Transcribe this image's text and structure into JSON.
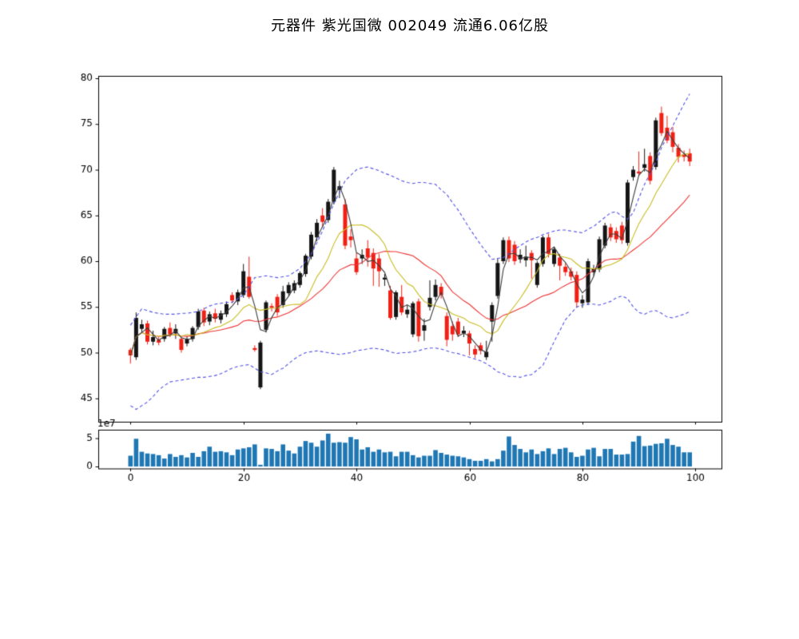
{
  "title": "元器件 紫光国微 002049 流通6.06亿股",
  "chart_data": {
    "type": "candlestick",
    "title": "元器件 紫光国微 002049 流通6.06亿股",
    "x_description": "trading session index 0-99",
    "ohlc": [
      [
        50.3,
        50.5,
        48.8,
        49.7
      ],
      [
        49.5,
        54.4,
        49.2,
        53.8
      ],
      [
        52.6,
        53.6,
        52.2,
        53.1
      ],
      [
        53.2,
        53.5,
        50.9,
        51.2
      ],
      [
        51.2,
        52.4,
        50.8,
        51.7
      ],
      [
        51.4,
        51.7,
        50.8,
        51.1
      ],
      [
        51.5,
        52.8,
        51.2,
        52.6
      ],
      [
        52.7,
        53.3,
        51.7,
        52.0
      ],
      [
        52.1,
        53.1,
        51.5,
        52.6
      ],
      [
        51.5,
        51.8,
        50.0,
        50.3
      ],
      [
        51.0,
        51.8,
        50.7,
        51.5
      ],
      [
        51.5,
        52.9,
        51.2,
        52.7
      ],
      [
        52.8,
        54.8,
        52.5,
        54.5
      ],
      [
        54.6,
        54.9,
        52.9,
        53.3
      ],
      [
        53.4,
        54.5,
        53.0,
        54.2
      ],
      [
        54.3,
        54.8,
        53.3,
        53.7
      ],
      [
        53.6,
        54.6,
        53.2,
        54.3
      ],
      [
        54.2,
        55.6,
        53.9,
        55.3
      ],
      [
        56.3,
        56.6,
        55.4,
        55.7
      ],
      [
        55.6,
        56.9,
        55.2,
        56.6
      ],
      [
        56.3,
        59.7,
        56.0,
        58.9
      ],
      [
        58.3,
        60.5,
        55.9,
        56.1
      ],
      [
        50.5,
        50.8,
        50.1,
        50.3
      ],
      [
        46.2,
        51.3,
        46.0,
        51.1
      ],
      [
        52.5,
        55.7,
        52.2,
        55.5
      ],
      [
        55.1,
        55.4,
        54.5,
        54.9
      ],
      [
        56.1,
        56.4,
        54.0,
        54.4
      ],
      [
        55.2,
        57.3,
        54.9,
        56.7
      ],
      [
        56.5,
        57.7,
        56.2,
        57.4
      ],
      [
        56.8,
        57.9,
        56.5,
        57.6
      ],
      [
        57.4,
        58.9,
        57.1,
        58.7
      ],
      [
        58.6,
        60.8,
        58.3,
        60.6
      ],
      [
        60.5,
        63.2,
        60.2,
        62.9
      ],
      [
        62.6,
        64.6,
        62.2,
        64.2
      ],
      [
        65.0,
        65.8,
        63.7,
        64.3
      ],
      [
        64.5,
        66.8,
        64.2,
        66.5
      ],
      [
        66.5,
        70.3,
        66.2,
        70.0
      ],
      [
        67.8,
        68.8,
        66.9,
        68.2
      ],
      [
        66.2,
        66.8,
        61.3,
        61.7
      ],
      [
        62.7,
        63.5,
        61.5,
        62.3
      ],
      [
        60.3,
        60.9,
        58.5,
        58.8
      ],
      [
        60.3,
        61.3,
        59.7,
        60.7
      ],
      [
        61.4,
        62.3,
        59.4,
        60.4
      ],
      [
        60.9,
        61.4,
        57.3,
        59.2
      ],
      [
        60.3,
        60.8,
        57.2,
        58.9
      ],
      [
        58.0,
        58.6,
        57.3,
        58.2
      ],
      [
        56.8,
        57.3,
        53.6,
        53.8
      ],
      [
        53.9,
        56.8,
        53.6,
        56.6
      ],
      [
        56.1,
        57.4,
        54.1,
        54.4
      ],
      [
        54.2,
        55.2,
        53.8,
        54.7
      ],
      [
        52.0,
        55.6,
        51.7,
        55.4
      ],
      [
        55.6,
        55.9,
        51.2,
        51.8
      ],
      [
        52.4,
        53.7,
        51.3,
        53.0
      ],
      [
        55.0,
        57.9,
        54.6,
        56.0
      ],
      [
        56.1,
        58.0,
        55.7,
        57.4
      ],
      [
        57.2,
        57.6,
        55.9,
        56.3
      ],
      [
        54.0,
        54.4,
        50.7,
        51.4
      ],
      [
        52.9,
        53.4,
        51.3,
        52.0
      ],
      [
        53.4,
        53.8,
        51.7,
        52.0
      ],
      [
        52.1,
        52.9,
        51.7,
        52.4
      ],
      [
        52.1,
        52.4,
        49.7,
        51.0
      ],
      [
        50.4,
        50.8,
        49.4,
        49.8
      ],
      [
        50.8,
        51.1,
        49.8,
        50.2
      ],
      [
        49.5,
        51.3,
        49.2,
        50.1
      ],
      [
        53.4,
        55.5,
        51.2,
        55.2
      ],
      [
        56.2,
        60.3,
        55.9,
        59.8
      ],
      [
        60.0,
        62.6,
        59.7,
        62.3
      ],
      [
        62.3,
        62.7,
        59.9,
        60.3
      ],
      [
        61.8,
        62.2,
        59.6,
        60.0
      ],
      [
        60.2,
        61.3,
        59.8,
        60.7
      ],
      [
        60.1,
        61.7,
        59.4,
        60.5
      ],
      [
        60.9,
        61.2,
        58.1,
        60.1
      ],
      [
        57.4,
        60.0,
        57.1,
        59.8
      ],
      [
        59.7,
        62.8,
        59.4,
        62.6
      ],
      [
        62.6,
        63.0,
        60.4,
        60.8
      ],
      [
        59.7,
        61.5,
        59.4,
        61.3
      ],
      [
        60.4,
        60.8,
        57.9,
        59.5
      ],
      [
        59.4,
        59.8,
        58.4,
        58.8
      ],
      [
        58.9,
        59.3,
        57.9,
        58.3
      ],
      [
        58.5,
        58.9,
        54.9,
        55.5
      ],
      [
        55.4,
        56.3,
        54.9,
        55.8
      ],
      [
        55.5,
        60.3,
        55.2,
        60.0
      ],
      [
        58.8,
        59.6,
        58.4,
        59.2
      ],
      [
        59.1,
        62.7,
        58.8,
        62.4
      ],
      [
        61.7,
        64.2,
        61.4,
        63.9
      ],
      [
        63.7,
        64.1,
        62.2,
        62.6
      ],
      [
        63.3,
        63.7,
        62.0,
        62.4
      ],
      [
        63.9,
        64.3,
        61.9,
        62.3
      ],
      [
        62.0,
        68.9,
        61.7,
        68.6
      ],
      [
        69.2,
        70.4,
        68.8,
        70.0
      ],
      [
        69.8,
        72.0,
        69.4,
        69.6
      ],
      [
        70.2,
        72.3,
        69.8,
        70.6
      ],
      [
        71.5,
        71.9,
        68.4,
        68.8
      ],
      [
        70.3,
        75.7,
        70.0,
        75.4
      ],
      [
        76.2,
        76.9,
        73.7,
        74.0
      ],
      [
        74.6,
        75.9,
        72.9,
        73.2
      ],
      [
        74.1,
        74.7,
        71.9,
        72.5
      ],
      [
        72.4,
        72.8,
        70.8,
        71.4
      ],
      [
        71.7,
        72.1,
        70.9,
        71.4
      ],
      [
        71.8,
        72.3,
        70.4,
        70.9
      ]
    ],
    "volume_1e7": [
      1.9,
      4.9,
      2.6,
      2.3,
      2.2,
      2.0,
      1.4,
      2.2,
      1.7,
      2.0,
      1.6,
      2.4,
      1.7,
      2.7,
      3.5,
      2.6,
      2.7,
      2.5,
      2.0,
      3.0,
      3.2,
      3.4,
      3.9,
      0.3,
      3.2,
      3.1,
      2.7,
      3.9,
      2.8,
      2.3,
      3.5,
      4.5,
      4.2,
      3.5,
      4.6,
      5.8,
      4.2,
      4.3,
      4.2,
      5.2,
      4.8,
      3.0,
      3.4,
      2.6,
      3.0,
      2.5,
      2.6,
      1.8,
      2.6,
      2.6,
      2.0,
      1.6,
      1.9,
      1.9,
      2.9,
      2.4,
      2.1,
      1.9,
      1.8,
      1.6,
      1.3,
      1.0,
      1.0,
      1.3,
      0.9,
      1.3,
      2.8,
      5.3,
      3.8,
      3.1,
      2.5,
      3.0,
      2.2,
      2.7,
      3.2,
      2.2,
      3.1,
      3.3,
      2.5,
      1.7,
      1.9,
      3.0,
      3.3,
      1.8,
      3.1,
      3.1,
      2.1,
      2.1,
      2.2,
      4.4,
      5.4,
      3.6,
      3.7,
      4.0,
      4.1,
      4.9,
      3.8,
      3.5,
      2.5,
      2.5
    ],
    "overlays": {
      "ma_fast_window": 3,
      "ma_mid_window": 10,
      "ma_slow_window": 20,
      "boll_upper": [
        53.0,
        53.9,
        54.8,
        54.6,
        54.4,
        54.3,
        54.2,
        54.2,
        54.2,
        54.3,
        54.3,
        54.4,
        54.5,
        54.8,
        55.1,
        55.3,
        55.4,
        55.5,
        55.5,
        55.9,
        56.3,
        57.2,
        58.2,
        58.3,
        58.4,
        58.3,
        58.2,
        58.3,
        58.4,
        58.8,
        59.2,
        60.0,
        60.8,
        62.0,
        63.3,
        64.8,
        66.3,
        67.5,
        68.8,
        69.4,
        70.0,
        70.2,
        70.3,
        70.1,
        69.9,
        69.6,
        69.4,
        69.1,
        68.8,
        68.6,
        68.5,
        68.6,
        68.6,
        68.5,
        68.4,
        67.8,
        67.3,
        66.4,
        65.6,
        64.6,
        63.6,
        62.7,
        61.8,
        61.0,
        60.2,
        60.3,
        60.4,
        60.8,
        61.3,
        61.7,
        62.1,
        62.4,
        62.6,
        62.9,
        63.1,
        63.3,
        63.4,
        63.4,
        63.3,
        63.2,
        63.1,
        63.5,
        63.8,
        64.3,
        64.8,
        65.3,
        65.4,
        64.9,
        64.6,
        65.3,
        66.9,
        68.4,
        69.6,
        70.8,
        72.4,
        73.6,
        74.8,
        76.0,
        77.2,
        78.3
      ],
      "boll_lower": [
        44.2,
        43.8,
        44.2,
        44.6,
        45.2,
        45.9,
        46.4,
        46.8,
        46.9,
        47.0,
        47.1,
        47.2,
        47.3,
        47.3,
        47.4,
        47.5,
        47.7,
        48.0,
        48.3,
        48.5,
        48.6,
        48.7,
        48.3,
        47.9,
        47.8,
        47.6,
        48.0,
        48.3,
        48.8,
        49.3,
        49.7,
        50.0,
        50.1,
        50.2,
        50.1,
        50.0,
        49.9,
        49.8,
        49.9,
        50.0,
        50.2,
        50.3,
        50.4,
        50.5,
        50.4,
        50.3,
        50.1,
        49.9,
        50.0,
        50.0,
        50.1,
        50.2,
        50.4,
        50.5,
        50.5,
        50.4,
        50.2,
        50.0,
        49.9,
        49.7,
        49.5,
        49.3,
        49.1,
        48.8,
        48.4,
        47.9,
        47.7,
        47.4,
        47.4,
        47.3,
        47.5,
        47.6,
        48.1,
        48.6,
        49.9,
        51.2,
        52.4,
        53.6,
        54.3,
        55.0,
        55.2,
        55.3,
        55.3,
        55.2,
        55.4,
        55.6,
        56.0,
        56.2,
        55.9,
        55.0,
        54.4,
        54.2,
        54.5,
        54.6,
        54.3,
        53.9,
        53.8,
        54.0,
        54.2,
        54.5
      ]
    },
    "price_axis": {
      "ticks": [
        80,
        75,
        70,
        65,
        60,
        55,
        50,
        45
      ],
      "ylim": [
        42.4,
        80.3
      ]
    },
    "x_axis": {
      "ticks": [
        0,
        20,
        40,
        60,
        80,
        100
      ],
      "xlim": [
        -5.7,
        105.2
      ]
    },
    "volume_axis": {
      "ticks": [
        0,
        5
      ],
      "offset_text": "1e7",
      "ylim": [
        -0.35,
        6.85
      ]
    },
    "grid": false,
    "legend": "none",
    "colors": {
      "up_candle": "#151515",
      "down_candle": "#f02015",
      "ma_fast": "#3d3d3d",
      "ma_mid": "#c9bd22",
      "ma_slow": "#ef3333",
      "bollinger_band": "#5353e6",
      "volume_bar": "#1f77b4",
      "axis": "#000000",
      "background": "#ffffff"
    }
  }
}
